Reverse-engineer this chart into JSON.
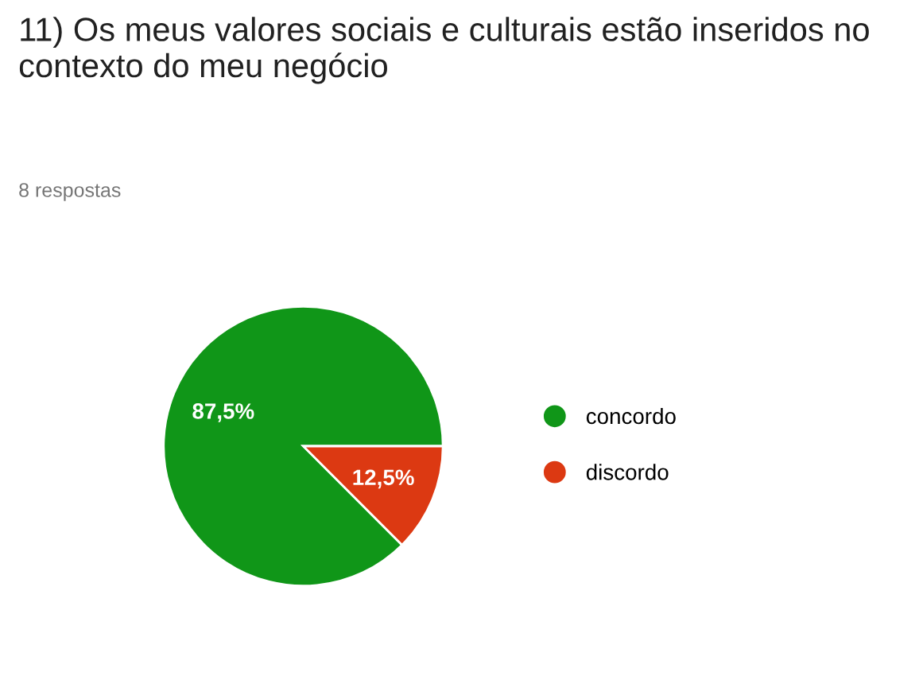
{
  "chart_data": {
    "type": "pie",
    "title": "11) Os meus valores sociais e culturais estão inseridos no contexto do meu negócio",
    "subtitle": "8 respostas",
    "categories": [
      "concordo",
      "discordo"
    ],
    "values": [
      87.5,
      12.5
    ],
    "value_labels": [
      "87,5%",
      "12,5%"
    ],
    "colors": [
      "#109618",
      "#dc3912"
    ],
    "legend": "right"
  }
}
